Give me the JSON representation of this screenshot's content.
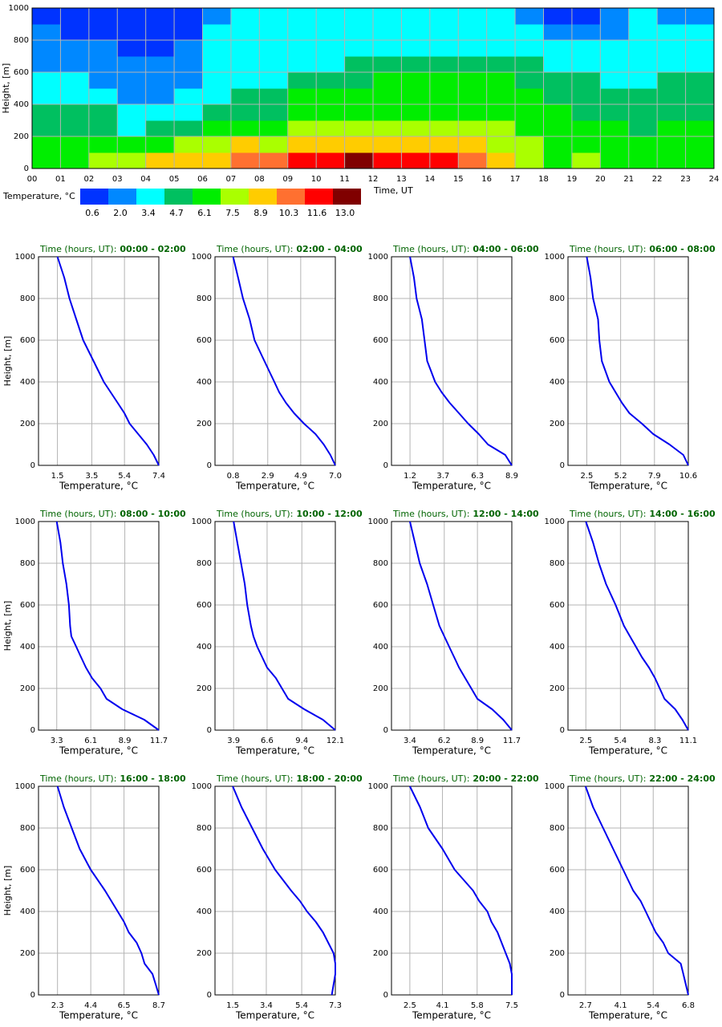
{
  "chart_data": [
    {
      "type": "heatmap",
      "xlabel": "Time, UT",
      "ylabel": "Height, [m]",
      "colorbar_label": "Temperature, °C",
      "xlim": [
        0,
        24
      ],
      "ylim": [
        0,
        1000
      ],
      "xticks": [
        {
          "value": 0,
          "label": "00"
        },
        {
          "value": 1,
          "label": "01"
        },
        {
          "value": 2,
          "label": "02"
        },
        {
          "value": 3,
          "label": "03"
        },
        {
          "value": 4,
          "label": "04"
        },
        {
          "value": 5,
          "label": "05"
        },
        {
          "value": 6,
          "label": "06"
        },
        {
          "value": 7,
          "label": "07"
        },
        {
          "value": 8,
          "label": "08"
        },
        {
          "value": 9,
          "label": "09"
        },
        10,
        11,
        12,
        13,
        14,
        15,
        16,
        17,
        18,
        19,
        20,
        21,
        22,
        23,
        24
      ],
      "yticks": [
        0,
        200,
        400,
        600,
        800,
        1000
      ],
      "grid": true,
      "hours": [
        0,
        1,
        2,
        3,
        4,
        5,
        6,
        7,
        8,
        9,
        10,
        11,
        12,
        13,
        14,
        15,
        16,
        17,
        18,
        19,
        20,
        21,
        22,
        23,
        24
      ],
      "heights": [
        0,
        100,
        200,
        300,
        400,
        500,
        600,
        700,
        800,
        900,
        1000
      ],
      "values": [
        [
          6.1,
          6.1,
          4.7,
          4.7,
          3.4,
          3.4,
          2.0,
          2.0,
          2.0,
          0.6
        ],
        [
          6.1,
          6.1,
          4.7,
          4.7,
          3.4,
          3.4,
          2.0,
          2.0,
          0.6,
          0.6
        ],
        [
          7.5,
          6.1,
          4.7,
          4.7,
          3.4,
          2.0,
          2.0,
          2.0,
          0.6,
          0.6
        ],
        [
          7.5,
          6.1,
          3.4,
          3.4,
          2.0,
          2.0,
          2.0,
          0.6,
          0.6,
          0.6
        ],
        [
          8.9,
          6.1,
          4.7,
          3.4,
          2.0,
          2.0,
          2.0,
          0.6,
          0.6,
          0.6
        ],
        [
          8.9,
          7.5,
          4.7,
          3.4,
          3.4,
          2.0,
          2.0,
          2.0,
          0.6,
          0.6
        ],
        [
          8.9,
          7.5,
          6.1,
          4.7,
          3.4,
          3.4,
          3.4,
          3.4,
          3.4,
          2.0
        ],
        [
          10.3,
          8.9,
          6.1,
          4.7,
          4.7,
          3.4,
          3.4,
          3.4,
          3.4,
          3.4
        ],
        [
          10.3,
          7.5,
          6.1,
          4.7,
          4.7,
          3.4,
          3.4,
          3.4,
          3.4,
          3.4
        ],
        [
          11.6,
          8.9,
          7.5,
          6.1,
          6.1,
          4.7,
          3.4,
          3.4,
          3.4,
          3.4
        ],
        [
          11.6,
          8.9,
          7.5,
          6.1,
          6.1,
          4.7,
          3.4,
          3.4,
          3.4,
          3.4
        ],
        [
          13.0,
          8.9,
          7.5,
          6.1,
          6.1,
          4.7,
          4.7,
          3.4,
          3.4,
          3.4
        ],
        [
          11.6,
          8.9,
          7.5,
          6.1,
          6.1,
          6.1,
          4.7,
          3.4,
          3.4,
          3.4
        ],
        [
          11.6,
          8.9,
          7.5,
          6.1,
          6.1,
          6.1,
          4.7,
          3.4,
          3.4,
          3.4
        ],
        [
          11.6,
          8.9,
          7.5,
          6.1,
          6.1,
          6.1,
          4.7,
          3.4,
          3.4,
          3.4
        ],
        [
          10.3,
          8.9,
          7.5,
          6.1,
          6.1,
          6.1,
          4.7,
          3.4,
          3.4,
          3.4
        ],
        [
          8.9,
          7.5,
          7.5,
          6.1,
          6.1,
          6.1,
          4.7,
          3.4,
          3.4,
          3.4
        ],
        [
          7.5,
          7.5,
          6.1,
          6.1,
          6.1,
          4.7,
          4.7,
          3.4,
          3.4,
          2.0
        ],
        [
          6.1,
          6.1,
          6.1,
          6.1,
          4.7,
          4.7,
          3.4,
          3.4,
          2.0,
          0.6
        ],
        [
          7.5,
          6.1,
          6.1,
          4.7,
          4.7,
          4.7,
          3.4,
          3.4,
          2.0,
          0.6
        ],
        [
          6.1,
          6.1,
          6.1,
          4.7,
          4.7,
          3.4,
          3.4,
          3.4,
          2.0,
          2.0
        ],
        [
          6.1,
          6.1,
          4.7,
          4.7,
          4.7,
          3.4,
          3.4,
          3.4,
          3.4,
          3.4
        ],
        [
          6.1,
          6.1,
          6.1,
          4.7,
          4.7,
          4.7,
          3.4,
          3.4,
          3.4,
          2.0
        ],
        [
          6.1,
          6.1,
          6.1,
          4.7,
          4.7,
          4.7,
          3.4,
          3.4,
          3.4,
          2.0
        ]
      ],
      "levels": [
        0.6,
        {
          "value": 2,
          "label": "2.0"
        },
        3.4,
        4.7,
        6.1,
        7.5,
        8.9,
        10.3,
        11.6,
        {
          "value": 13,
          "label": "13.0"
        }
      ],
      "colors": [
        "#0033ff",
        "#0088ff",
        "#00ffff",
        "#00c060",
        "#00ee00",
        "#aaff00",
        "#ffcc00",
        "#ff7030",
        "#ff0000",
        "#800000"
      ]
    },
    {
      "type": "line",
      "title": "Time (hours, UT):",
      "period": "00:00 - 02:00",
      "xlabel": "Temperature, °C",
      "ylabel": "Height, [m]",
      "color": "#0000ee",
      "grid": true,
      "heights": [
        0,
        50,
        100,
        150,
        200,
        250,
        300,
        350,
        400,
        450,
        500,
        600,
        700,
        800,
        900,
        1000
      ],
      "values": [
        7.4,
        7.1,
        6.7,
        6.2,
        5.7,
        5.4,
        5.0,
        4.6,
        4.2,
        3.9,
        3.6,
        3.0,
        2.6,
        2.2,
        1.9,
        1.5
      ],
      "xlim": [
        0.4,
        7.4
      ],
      "xticks": [
        1.5,
        3.5,
        5.4,
        7.4
      ],
      "ylim": [
        0,
        1000
      ],
      "yticks": [
        0,
        200,
        400,
        600,
        800,
        1000
      ]
    },
    {
      "type": "line",
      "title": "Time (hours, UT):",
      "period": "02:00 - 04:00",
      "xlabel": "Temperature, °C",
      "color": "#0000ee",
      "grid": true,
      "heights": [
        0,
        50,
        100,
        150,
        200,
        250,
        300,
        350,
        400,
        450,
        500,
        600,
        700,
        800,
        900,
        1000
      ],
      "values": [
        7.0,
        6.7,
        6.3,
        5.8,
        5.1,
        4.5,
        4.0,
        3.6,
        3.3,
        3.0,
        2.7,
        2.1,
        1.8,
        1.4,
        1.1,
        0.8
      ],
      "xlim": [
        -0.3,
        7.0
      ],
      "xticks": [
        0.8,
        2.9,
        4.9,
        {
          "value": 7,
          "label": "7.0"
        }
      ],
      "ylim": [
        0,
        1000
      ],
      "yticks": [
        0,
        200,
        400,
        600,
        800,
        1000
      ]
    },
    {
      "type": "line",
      "title": "Time (hours, UT):",
      "period": "04:00 - 06:00",
      "xlabel": "Temperature, °C",
      "color": "#0000ee",
      "grid": true,
      "heights": [
        0,
        50,
        100,
        150,
        200,
        250,
        300,
        350,
        400,
        450,
        500,
        600,
        700,
        800,
        900,
        1000
      ],
      "values": [
        8.9,
        8.4,
        7.1,
        6.4,
        5.6,
        4.9,
        4.2,
        3.6,
        3.1,
        2.8,
        2.5,
        2.3,
        2.1,
        1.7,
        1.5,
        1.2
      ],
      "xlim": [
        -0.2,
        8.9
      ],
      "xticks": [
        1.2,
        3.7,
        6.3,
        8.9
      ],
      "ylim": [
        0,
        1000
      ],
      "yticks": [
        0,
        200,
        400,
        600,
        800,
        1000
      ]
    },
    {
      "type": "line",
      "title": "Time (hours, UT):",
      "period": "06:00 - 08:00",
      "xlabel": "Temperature, °C",
      "color": "#0000ee",
      "grid": true,
      "heights": [
        0,
        50,
        100,
        150,
        200,
        250,
        300,
        350,
        400,
        450,
        500,
        600,
        700,
        800,
        900,
        1000
      ],
      "values": [
        10.6,
        10.2,
        9.1,
        7.8,
        6.9,
        5.9,
        5.3,
        4.8,
        4.3,
        4.0,
        3.7,
        3.5,
        3.4,
        3.0,
        2.8,
        2.5
      ],
      "xlim": [
        1.0,
        10.6
      ],
      "xticks": [
        2.5,
        5.2,
        7.9,
        10.6
      ],
      "ylim": [
        0,
        1000
      ],
      "yticks": [
        0,
        200,
        400,
        600,
        800,
        1000
      ]
    },
    {
      "type": "line",
      "title": "Time (hours, UT):",
      "period": "08:00 - 10:00",
      "xlabel": "Temperature, °C",
      "ylabel": "Height, [m]",
      "color": "#0000ee",
      "grid": true,
      "heights": [
        0,
        50,
        100,
        150,
        200,
        250,
        300,
        350,
        400,
        450,
        500,
        600,
        700,
        800,
        900,
        1000
      ],
      "values": [
        11.7,
        10.5,
        8.7,
        7.4,
        6.9,
        6.2,
        5.7,
        5.3,
        4.9,
        4.5,
        4.4,
        4.3,
        4.1,
        3.8,
        3.6,
        3.3
      ],
      "xlim": [
        1.8,
        11.7
      ],
      "xticks": [
        3.3,
        6.1,
        8.9,
        11.7
      ],
      "ylim": [
        0,
        1000
      ],
      "yticks": [
        0,
        200,
        400,
        600,
        800,
        1000
      ]
    },
    {
      "type": "line",
      "title": "Time (hours, UT):",
      "period": "10:00 - 12:00",
      "xlabel": "Temperature, °C",
      "color": "#0000ee",
      "grid": true,
      "heights": [
        0,
        50,
        100,
        150,
        200,
        250,
        300,
        350,
        400,
        450,
        500,
        600,
        700,
        800,
        900,
        1000
      ],
      "values": [
        12.1,
        11.1,
        9.6,
        8.3,
        7.8,
        7.3,
        6.6,
        6.2,
        5.8,
        5.5,
        5.3,
        5.0,
        4.8,
        4.5,
        4.2,
        3.9
      ],
      "xlim": [
        2.4,
        12.1
      ],
      "xticks": [
        3.9,
        6.6,
        9.4,
        12.1
      ],
      "ylim": [
        0,
        1000
      ],
      "yticks": [
        0,
        200,
        400,
        600,
        800,
        1000
      ]
    },
    {
      "type": "line",
      "title": "Time (hours, UT):",
      "period": "12:00 - 14:00",
      "xlabel": "Temperature, °C",
      "color": "#0000ee",
      "grid": true,
      "heights": [
        0,
        50,
        100,
        150,
        200,
        250,
        300,
        350,
        400,
        450,
        500,
        600,
        700,
        800,
        900,
        1000
      ],
      "values": [
        11.7,
        11.0,
        10.1,
        8.9,
        8.4,
        7.9,
        7.4,
        7.0,
        6.6,
        6.2,
        5.8,
        5.3,
        4.8,
        4.2,
        3.8,
        3.4
      ],
      "xlim": [
        1.9,
        11.7
      ],
      "xticks": [
        3.4,
        6.2,
        8.9,
        11.7
      ],
      "ylim": [
        0,
        1000
      ],
      "yticks": [
        0,
        200,
        400,
        600,
        800,
        1000
      ]
    },
    {
      "type": "line",
      "title": "Time (hours, UT):",
      "period": "14:00 - 16:00",
      "xlabel": "Temperature, °C",
      "color": "#0000ee",
      "grid": true,
      "heights": [
        0,
        50,
        100,
        150,
        200,
        250,
        300,
        350,
        400,
        450,
        500,
        600,
        700,
        800,
        900,
        1000
      ],
      "values": [
        11.1,
        10.6,
        10.0,
        9.1,
        8.7,
        8.3,
        7.8,
        7.2,
        6.7,
        6.2,
        5.7,
        5.0,
        4.2,
        3.6,
        3.1,
        2.5
      ],
      "xlim": [
        1.0,
        11.1
      ],
      "xticks": [
        2.5,
        5.4,
        8.3,
        11.1
      ],
      "ylim": [
        0,
        1000
      ],
      "yticks": [
        0,
        200,
        400,
        600,
        800,
        1000
      ]
    },
    {
      "type": "line",
      "title": "Time (hours, UT):",
      "period": "16:00 - 18:00",
      "xlabel": "Temperature, °C",
      "ylabel": "Height, [m]",
      "color": "#0000ee",
      "grid": true,
      "heights": [
        0,
        50,
        100,
        150,
        200,
        250,
        300,
        350,
        400,
        450,
        500,
        600,
        700,
        800,
        900,
        1000
      ],
      "values": [
        8.7,
        8.5,
        8.3,
        7.8,
        7.6,
        7.3,
        6.8,
        6.5,
        6.1,
        5.7,
        5.3,
        4.4,
        3.7,
        3.2,
        2.7,
        2.3
      ],
      "xlim": [
        1.1,
        8.7
      ],
      "xticks": [
        2.3,
        4.4,
        6.5,
        8.7
      ],
      "ylim": [
        0,
        1000
      ],
      "yticks": [
        0,
        200,
        400,
        600,
        800,
        1000
      ]
    },
    {
      "type": "line",
      "title": "Time (hours, UT):",
      "period": "18:00 - 20:00",
      "xlabel": "Temperature, °C",
      "color": "#0000ee",
      "grid": true,
      "heights": [
        0,
        50,
        100,
        150,
        200,
        250,
        300,
        350,
        400,
        450,
        500,
        600,
        700,
        800,
        900,
        1000
      ],
      "values": [
        7.1,
        7.2,
        7.3,
        7.3,
        7.2,
        6.9,
        6.6,
        6.2,
        5.7,
        5.3,
        4.8,
        3.9,
        3.2,
        2.6,
        2.0,
        1.5
      ],
      "xlim": [
        0.5,
        7.3
      ],
      "xticks": [
        1.5,
        3.4,
        5.4,
        7.3
      ],
      "ylim": [
        0,
        1000
      ],
      "yticks": [
        0,
        200,
        400,
        600,
        800,
        1000
      ]
    },
    {
      "type": "line",
      "title": "Time (hours, UT):",
      "period": "20:00 - 22:00",
      "xlabel": "Temperature, °C",
      "color": "#0000ee",
      "grid": true,
      "heights": [
        0,
        50,
        100,
        150,
        200,
        250,
        300,
        350,
        400,
        450,
        500,
        600,
        700,
        800,
        900,
        1000
      ],
      "values": [
        7.5,
        7.5,
        7.5,
        7.4,
        7.2,
        7.0,
        6.8,
        6.5,
        6.3,
        5.9,
        5.6,
        4.7,
        4.1,
        3.4,
        3.0,
        2.5
      ],
      "xlim": [
        1.6,
        7.5
      ],
      "xticks": [
        2.5,
        4.1,
        5.8,
        7.5
      ],
      "ylim": [
        0,
        1000
      ],
      "yticks": [
        0,
        200,
        400,
        600,
        800,
        1000
      ]
    },
    {
      "type": "line",
      "title": "Time (hours, UT):",
      "period": "22:00 - 24:00",
      "xlabel": "Temperature, °C",
      "color": "#0000ee",
      "grid": true,
      "heights": [
        0,
        50,
        100,
        150,
        200,
        250,
        300,
        350,
        400,
        450,
        500,
        600,
        700,
        800,
        900,
        1000
      ],
      "values": [
        6.8,
        6.7,
        6.6,
        6.5,
        6.0,
        5.8,
        5.5,
        5.3,
        5.1,
        4.9,
        4.6,
        4.2,
        3.8,
        3.4,
        3.0,
        2.7
      ],
      "xlim": [
        2.0,
        6.8
      ],
      "xticks": [
        2.7,
        4.1,
        5.4,
        6.8
      ],
      "ylim": [
        0,
        1000
      ],
      "yticks": [
        0,
        200,
        400,
        600,
        800,
        1000
      ]
    }
  ]
}
